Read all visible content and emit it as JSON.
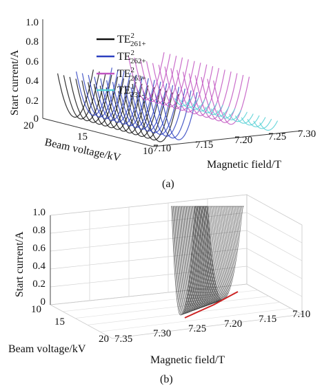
{
  "chart_data": [
    {
      "type": "surface",
      "panel_label": "(a)",
      "zlabel": "Start current/A",
      "ylabel": "Beam voltage/kV",
      "xlabel": "Magnetic field/T",
      "z_ticks": [
        "1.0",
        "0.8",
        "0.6",
        "0.4",
        "0.2",
        "0"
      ],
      "y_ticks": [
        "20",
        "15",
        "10"
      ],
      "x_ticks": [
        "7.10",
        "7.15",
        "7.20",
        "7.25",
        "7.30"
      ],
      "xlim": [
        7.1,
        7.3
      ],
      "ylim": [
        10,
        20
      ],
      "zlim": [
        0,
        1.0
      ],
      "grid": false,
      "legend_position": "top-left",
      "series": [
        {
          "name": "TE",
          "sup": "2",
          "sub": "261+",
          "color": "#111111",
          "min_field_T": 7.125,
          "min_current_A": 0.0
        },
        {
          "name": "TE",
          "sup": "2",
          "sub": "262+",
          "color": "#2b3fbf",
          "min_field_T": 7.15,
          "min_current_A": 0.0
        },
        {
          "name": "TE",
          "sup": "2",
          "sub": "263+",
          "color": "#c154c1",
          "min_field_T": 7.22,
          "min_current_A": 0.1
        },
        {
          "name": "TE",
          "sup": "1",
          "sub": "231-",
          "color": "#57d1d6",
          "min_field_T": 7.27,
          "min_current_A": 0.0
        }
      ]
    },
    {
      "type": "surface",
      "panel_label": "(b)",
      "zlabel": "Start current/A",
      "ylabel": "Beam voltage/kV",
      "xlabel": "Magnetic field/T",
      "z_ticks": [
        "1.0",
        "0.8",
        "0.6",
        "0.4",
        "0.2",
        "0"
      ],
      "y_ticks": [
        "10",
        "15",
        "20"
      ],
      "x_ticks": [
        "7.35",
        "7.30",
        "7.25",
        "7.20",
        "7.15",
        "7.10"
      ],
      "xlim": [
        7.35,
        7.1
      ],
      "ylim": [
        10,
        20
      ],
      "zlim": [
        0,
        1.0
      ],
      "grid": true,
      "colors": {
        "surface": "#2a2a2a",
        "ridge": "#cc2222"
      }
    }
  ]
}
